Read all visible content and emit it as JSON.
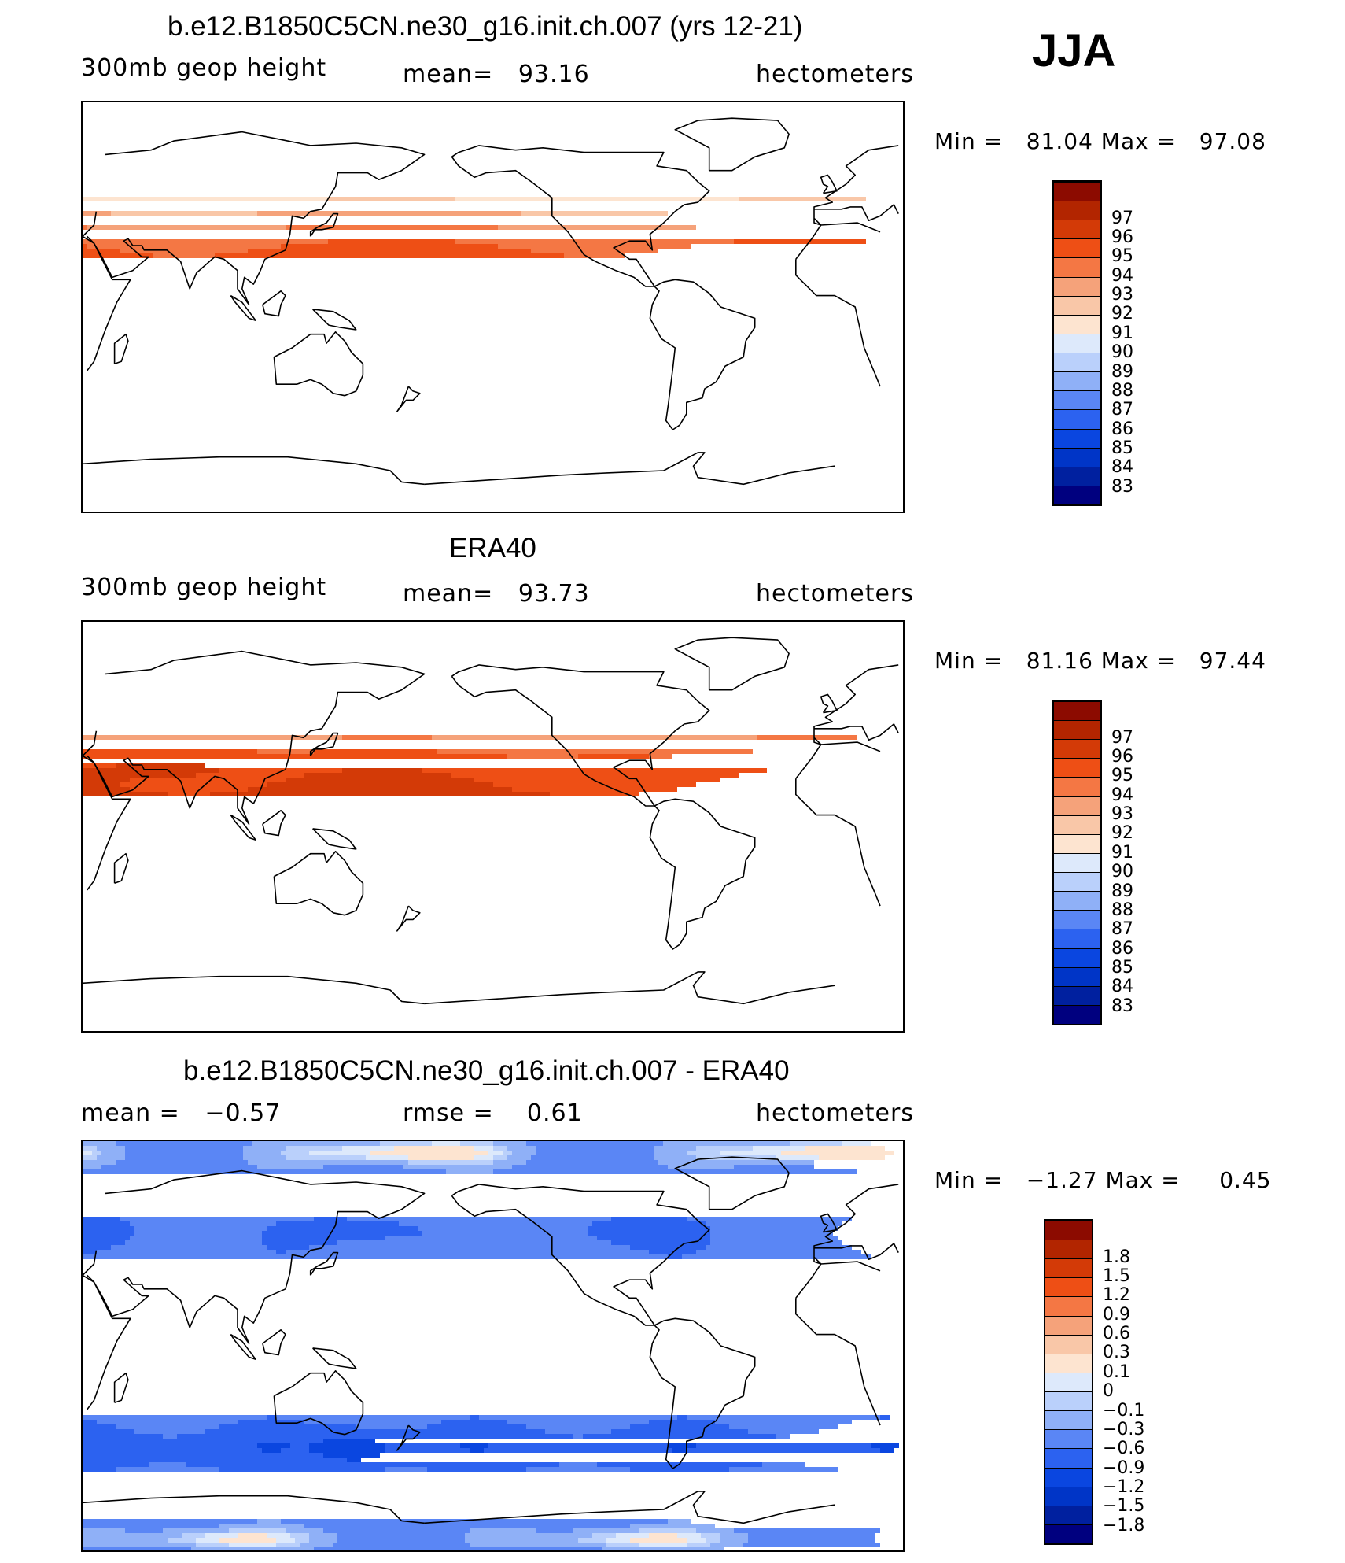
{
  "season": "JJA",
  "chart_data": [
    {
      "type": "heatmap",
      "title": "b.e12.B1850C5CN.ne30_g16.init.ch.007 (yrs 12-21)",
      "left_label": "300mb geop height",
      "center_label": "mean=   93.16",
      "units": "hectometers",
      "minmax_text": "Min =   81.04 Max =   97.08",
      "field": {
        "min": 81.04,
        "max": 97.08,
        "mean": 93.16
      },
      "colorbar": {
        "labels": [
          "83",
          "84",
          "85",
          "86",
          "87",
          "88",
          "89",
          "90",
          "91",
          "92",
          "93",
          "94",
          "95",
          "96",
          "97"
        ],
        "colors": [
          "#00007f",
          "#00209f",
          "#0035c7",
          "#0a46e0",
          "#2c62f0",
          "#5a86f5",
          "#8fb0f7",
          "#bad0fb",
          "#dde9fb",
          "#fde4d0",
          "#f9c7a8",
          "#f5a27a",
          "#f47744",
          "#ee4f15",
          "#d33a07",
          "#b22500",
          "#8c0b00"
        ]
      }
    },
    {
      "type": "heatmap",
      "title": "ERA40",
      "left_label": "300mb geop height",
      "center_label": "mean=   93.73",
      "units": "hectometers",
      "minmax_text": "Min =   81.16 Max =   97.44",
      "field": {
        "min": 81.16,
        "max": 97.44,
        "mean": 93.73
      },
      "colorbar": {
        "labels": [
          "83",
          "84",
          "85",
          "86",
          "87",
          "88",
          "89",
          "90",
          "91",
          "92",
          "93",
          "94",
          "95",
          "96",
          "97"
        ],
        "colors": [
          "#00007f",
          "#00209f",
          "#0035c7",
          "#0a46e0",
          "#2c62f0",
          "#5a86f5",
          "#8fb0f7",
          "#bad0fb",
          "#dde9fb",
          "#fde4d0",
          "#f9c7a8",
          "#f5a27a",
          "#f47744",
          "#ee4f15",
          "#d33a07",
          "#b22500",
          "#8c0b00"
        ]
      }
    },
    {
      "type": "heatmap",
      "title": "b.e12.B1850C5CN.ne30_g16.init.ch.007 - ERA40",
      "left_label": "mean =   −0.57",
      "center_label": "rmse =    0.61",
      "units": "hectometers",
      "minmax_text": "Min =   −1.27 Max =     0.45",
      "field": {
        "min": -1.27,
        "max": 0.45,
        "mean": -0.57,
        "rmse": 0.61
      },
      "colorbar": {
        "labels": [
          "−1.8",
          "−1.5",
          "−1.2",
          "−0.9",
          "−0.6",
          "−0.3",
          "−0.1",
          "0",
          "0.1",
          "0.3",
          "0.6",
          "0.9",
          "1.2",
          "1.5",
          "1.8"
        ],
        "colors": [
          "#00007f",
          "#00209f",
          "#0035c7",
          "#0a46e0",
          "#2c62f0",
          "#5a86f5",
          "#8fb0f7",
          "#bad0fb",
          "#dde9fb",
          "#fde4d0",
          "#f9c7a8",
          "#f5a27a",
          "#f47744",
          "#ee4f15",
          "#d33a07",
          "#b22500",
          "#8c0b00"
        ]
      }
    }
  ]
}
